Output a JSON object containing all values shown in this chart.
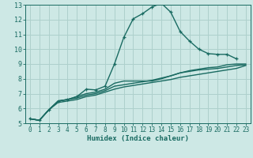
{
  "xlabel": "Humidex (Indice chaleur)",
  "ylabel": "",
  "background_color": "#cde8e5",
  "grid_color": "#aed0cc",
  "line_color": "#1a6b62",
  "xlim": [
    -0.5,
    23.5
  ],
  "ylim": [
    5,
    13
  ],
  "xticks": [
    0,
    1,
    2,
    3,
    4,
    5,
    6,
    7,
    8,
    9,
    10,
    11,
    12,
    13,
    14,
    15,
    16,
    17,
    18,
    19,
    20,
    21,
    22,
    23
  ],
  "yticks": [
    5,
    6,
    7,
    8,
    9,
    10,
    11,
    12,
    13
  ],
  "series": [
    {
      "x": [
        0,
        1,
        2,
        3,
        4,
        5,
        6,
        7,
        8,
        9,
        10,
        11,
        12,
        13,
        14,
        15,
        16,
        17,
        18,
        19,
        20,
        21,
        22
      ],
      "y": [
        5.3,
        5.2,
        5.9,
        6.5,
        6.6,
        6.8,
        7.3,
        7.25,
        7.5,
        9.0,
        10.8,
        12.05,
        12.4,
        12.85,
        13.1,
        12.5,
        11.2,
        10.55,
        10.0,
        9.7,
        9.65,
        9.65,
        9.35
      ],
      "marker": true
    },
    {
      "x": [
        0,
        1,
        2,
        3,
        4,
        5,
        6,
        7,
        8,
        9,
        10,
        11,
        12,
        13,
        14,
        15,
        16,
        17,
        18,
        19,
        20,
        21,
        22,
        23
      ],
      "y": [
        5.3,
        5.2,
        5.9,
        6.5,
        6.6,
        6.8,
        7.0,
        7.1,
        7.3,
        7.7,
        7.85,
        7.85,
        7.85,
        7.85,
        8.0,
        8.2,
        8.4,
        8.55,
        8.65,
        8.75,
        8.8,
        8.95,
        9.0,
        9.0
      ],
      "marker": false
    },
    {
      "x": [
        0,
        1,
        2,
        3,
        4,
        5,
        6,
        7,
        8,
        9,
        10,
        11,
        12,
        13,
        14,
        15,
        16,
        17,
        18,
        19,
        20,
        21,
        22,
        23
      ],
      "y": [
        5.3,
        5.2,
        5.9,
        6.5,
        6.6,
        6.7,
        6.9,
        7.0,
        7.2,
        7.5,
        7.6,
        7.7,
        7.8,
        7.9,
        8.05,
        8.2,
        8.4,
        8.5,
        8.6,
        8.65,
        8.7,
        8.8,
        8.9,
        8.95
      ],
      "marker": false
    },
    {
      "x": [
        0,
        1,
        2,
        3,
        4,
        5,
        6,
        7,
        8,
        9,
        10,
        11,
        12,
        13,
        14,
        15,
        16,
        17,
        18,
        19,
        20,
        21,
        22,
        23
      ],
      "y": [
        5.3,
        5.2,
        5.9,
        6.4,
        6.5,
        6.6,
        6.8,
        6.9,
        7.1,
        7.3,
        7.45,
        7.55,
        7.65,
        7.75,
        7.85,
        7.95,
        8.1,
        8.2,
        8.3,
        8.4,
        8.5,
        8.6,
        8.7,
        8.9
      ],
      "marker": false
    }
  ]
}
